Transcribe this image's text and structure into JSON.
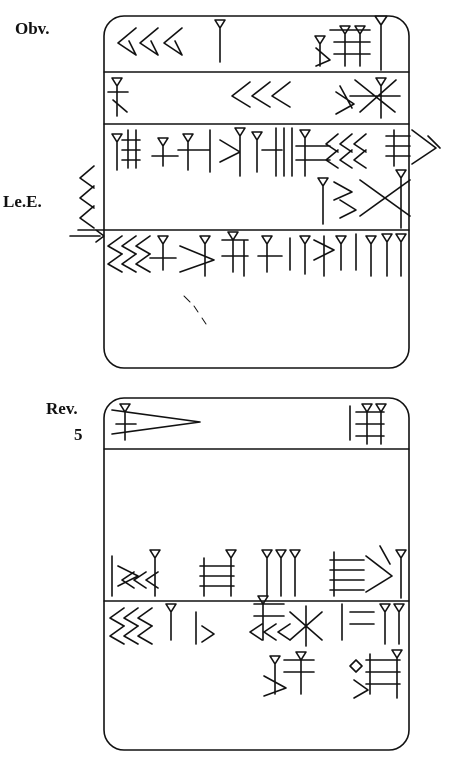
{
  "labels": {
    "obverse": "Obv.",
    "left_edge": "Le.E.",
    "reverse": "Rev.",
    "line_number": "5"
  },
  "colors": {
    "ink": "#111111",
    "background": "#ffffff"
  }
}
